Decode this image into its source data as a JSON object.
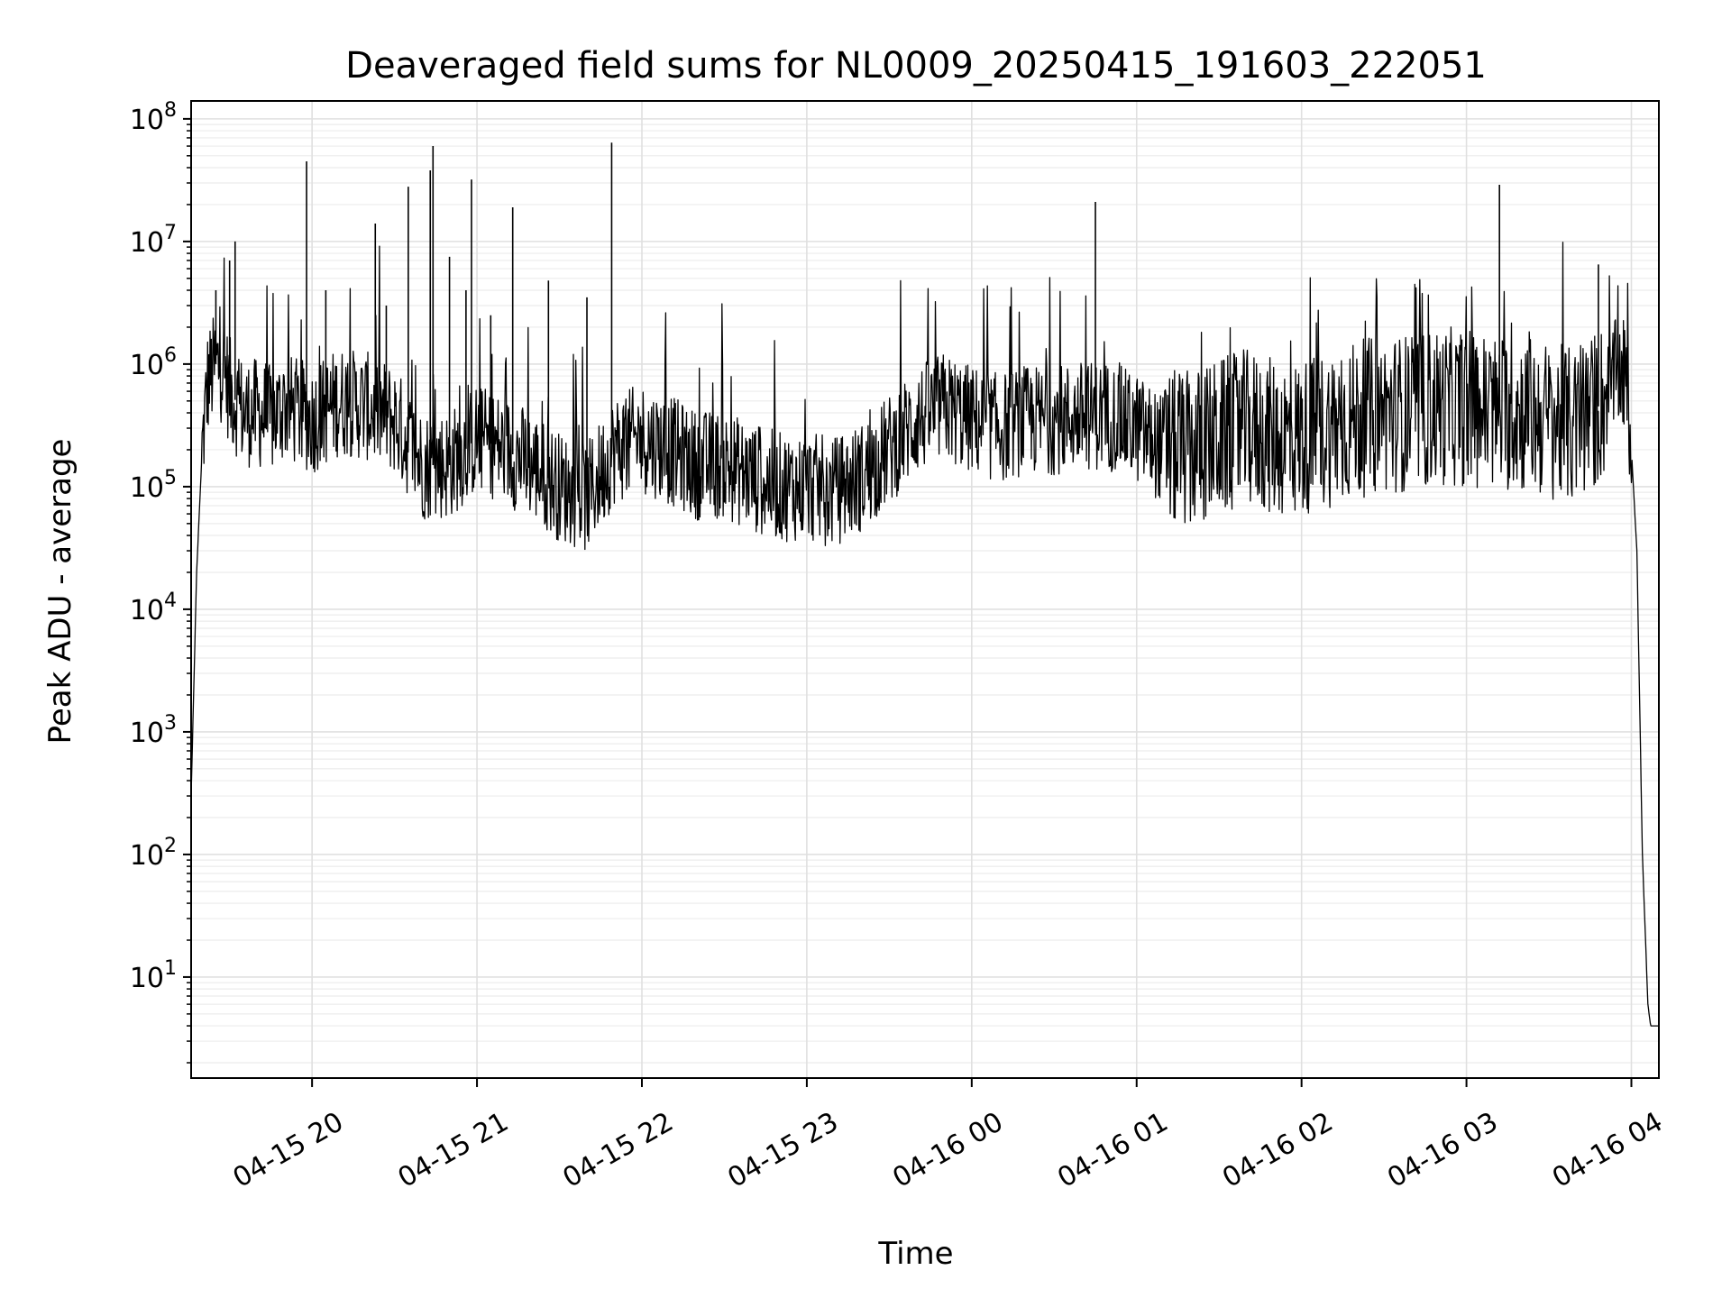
{
  "chart_data": {
    "type": "line",
    "title": "Deaveraged field sums for NL0009_20250415_191603_222051",
    "xlabel": "Time",
    "ylabel": "Peak ADU - average",
    "yscale": "log",
    "ylim": [
      1.5,
      140000000
    ],
    "xlim": [
      "2025-04-15 19:16:00",
      "2025-04-16 04:10:00"
    ],
    "grid": true,
    "line_color": "#000000",
    "x_tick_labels": [
      "04-15 20",
      "04-15 21",
      "04-15 22",
      "04-15 23",
      "04-16 00",
      "04-16 01",
      "04-16 02",
      "04-16 03",
      "04-16 04"
    ],
    "x_ticks": [
      "2025-04-15 20:00",
      "2025-04-15 21:00",
      "2025-04-15 22:00",
      "2025-04-15 23:00",
      "2025-04-16 00:00",
      "2025-04-16 01:00",
      "2025-04-16 02:00",
      "2025-04-16 03:00",
      "2025-04-16 04:00"
    ],
    "y_ticks": [
      10,
      100,
      1000,
      10000,
      100000,
      1000000,
      10000000,
      100000000
    ],
    "y_tick_bases": [
      "10",
      "10",
      "10",
      "10",
      "10",
      "10",
      "10",
      "10"
    ],
    "y_tick_exponents": [
      "1",
      "2",
      "3",
      "4",
      "5",
      "6",
      "7",
      "8"
    ],
    "series": [
      {
        "x": [
          "2025-04-15 19:16",
          "2025-04-15 19:18",
          "2025-04-15 19:20",
          "2025-04-15 19:22",
          "2025-04-15 19:25",
          "2025-04-15 19:28",
          "2025-04-15 19:30",
          "2025-04-15 19:35",
          "2025-04-15 19:40",
          "2025-04-15 19:45",
          "2025-04-15 19:50",
          "2025-04-15 19:55",
          "2025-04-15 20:00",
          "2025-04-15 20:10",
          "2025-04-15 20:20",
          "2025-04-15 20:30",
          "2025-04-15 20:40",
          "2025-04-15 20:50",
          "2025-04-15 21:00",
          "2025-04-15 21:10",
          "2025-04-15 21:20",
          "2025-04-15 21:30",
          "2025-04-15 21:40",
          "2025-04-15 21:50",
          "2025-04-15 22:00",
          "2025-04-15 22:10",
          "2025-04-15 22:20",
          "2025-04-15 22:30",
          "2025-04-15 22:40",
          "2025-04-15 22:50",
          "2025-04-15 23:00",
          "2025-04-15 23:10",
          "2025-04-15 23:20",
          "2025-04-15 23:30",
          "2025-04-15 23:40",
          "2025-04-15 23:50",
          "2025-04-16 00:00",
          "2025-04-16 00:10",
          "2025-04-16 00:20",
          "2025-04-16 00:30",
          "2025-04-16 00:40",
          "2025-04-16 00:50",
          "2025-04-16 01:00",
          "2025-04-16 01:10",
          "2025-04-16 01:20",
          "2025-04-16 01:30",
          "2025-04-16 01:40",
          "2025-04-16 01:50",
          "2025-04-16 02:00",
          "2025-04-16 02:10",
          "2025-04-16 02:20",
          "2025-04-16 02:30",
          "2025-04-16 02:40",
          "2025-04-16 02:50",
          "2025-04-16 03:00",
          "2025-04-16 03:10",
          "2025-04-16 03:20",
          "2025-04-16 03:30",
          "2025-04-16 03:40",
          "2025-04-16 03:50",
          "2025-04-16 03:55",
          "2025-04-16 03:58",
          "2025-04-16 04:00",
          "2025-04-16 04:02",
          "2025-04-16 04:04",
          "2025-04-16 04:06",
          "2025-04-16 04:07",
          "2025-04-16 04:08",
          "2025-04-16 04:10"
        ],
        "y": [
          300,
          20000,
          200000,
          700000,
          1000000,
          900000,
          600000,
          400000,
          400000,
          350000,
          450000,
          400000,
          350000,
          500000,
          450000,
          350000,
          150000,
          150000,
          250000,
          200000,
          150000,
          100000,
          80000,
          200000,
          250000,
          200000,
          150000,
          150000,
          120000,
          100000,
          100000,
          90000,
          120000,
          200000,
          350000,
          450000,
          350000,
          300000,
          350000,
          350000,
          380000,
          380000,
          300000,
          200000,
          200000,
          250000,
          300000,
          250000,
          250000,
          300000,
          350000,
          400000,
          400000,
          450000,
          450000,
          400000,
          400000,
          350000,
          300000,
          500000,
          900000,
          700000,
          200000,
          30000,
          100,
          6,
          4,
          4,
          4
        ],
        "spikes": [
          [
            "2025-04-15 19:25",
            4000000
          ],
          [
            "2025-04-15 19:30",
            7000000
          ],
          [
            "2025-04-15 19:32",
            10000000
          ],
          [
            "2025-04-15 19:58",
            45000000
          ],
          [
            "2025-04-15 20:05",
            4000000
          ],
          [
            "2025-04-15 20:23",
            14000000
          ],
          [
            "2025-04-15 20:27",
            3000000
          ],
          [
            "2025-04-15 20:35",
            28000000
          ],
          [
            "2025-04-15 20:43",
            38000000
          ],
          [
            "2025-04-15 20:44",
            60000000
          ],
          [
            "2025-04-15 20:50",
            7500000
          ],
          [
            "2025-04-15 20:56",
            4000000
          ],
          [
            "2025-04-15 20:58",
            32000000
          ],
          [
            "2025-04-15 21:05",
            2500000
          ],
          [
            "2025-04-15 21:13",
            19000000
          ],
          [
            "2025-04-15 21:26",
            4800000
          ],
          [
            "2025-04-15 21:40",
            3500000
          ],
          [
            "2025-04-15 21:49",
            64000000
          ],
          [
            "2025-04-16 00:45",
            21000000
          ],
          [
            "2025-04-16 03:12",
            29000000
          ],
          [
            "2025-04-16 03:48",
            6500000
          ]
        ]
      }
    ]
  }
}
